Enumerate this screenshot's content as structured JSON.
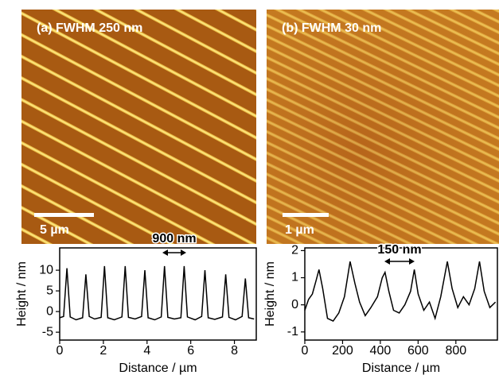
{
  "panels": [
    {
      "label": "(a) FWHM 250 nm",
      "scale_bar": "5 µm"
    },
    {
      "label": "(b) FWHM 30 nm",
      "scale_bar": "1 µm"
    }
  ],
  "chart_data": [
    {
      "type": "line",
      "x_label": "Distance / µm",
      "y_label": "Height / nm",
      "annotation": "900 nm",
      "x": [
        0,
        0.18,
        0.33,
        0.48,
        0.75,
        1.05,
        1.2,
        1.35,
        1.6,
        1.9,
        2.05,
        2.2,
        2.5,
        2.85,
        3.0,
        3.15,
        3.45,
        3.75,
        3.9,
        4.05,
        4.35,
        4.65,
        4.8,
        4.95,
        5.25,
        5.55,
        5.7,
        5.85,
        6.2,
        6.5,
        6.65,
        6.8,
        7.1,
        7.45,
        7.6,
        7.75,
        8.05,
        8.35,
        8.5,
        8.65,
        8.9
      ],
      "series": [
        {
          "color": "#000000",
          "values": [
            -1.5,
            -1.2,
            10.5,
            -1.3,
            -2,
            -1.5,
            9,
            -1.2,
            -1.8,
            -1.4,
            11,
            -1.5,
            -2,
            -1.3,
            11,
            -1.4,
            -1.8,
            -1.2,
            10,
            -1.5,
            -2,
            -1.3,
            11,
            -1.4,
            -1.8,
            -1.5,
            11,
            -1.3,
            -2,
            -1.2,
            10,
            -1.5,
            -1.9,
            -1.3,
            9,
            -1.4,
            -2,
            -1.2,
            8,
            -1.5,
            -1.8
          ]
        }
      ],
      "xlim": [
        0,
        9
      ],
      "ylim": [
        -6.9,
        15.4
      ],
      "xticks": [
        0,
        2,
        4,
        6,
        8
      ],
      "yticks": [
        -5,
        0,
        5,
        10
      ]
    },
    {
      "type": "line",
      "x_label": "Distance / µm",
      "y_label": "Height / nm",
      "annotation": "150 nm",
      "x": [
        0,
        20,
        40,
        60,
        75,
        95,
        120,
        150,
        180,
        210,
        240,
        265,
        290,
        320,
        350,
        385,
        410,
        425,
        445,
        470,
        500,
        530,
        560,
        580,
        600,
        630,
        660,
        690,
        720,
        755,
        780,
        810,
        840,
        870,
        900,
        925,
        950,
        980,
        1010
      ],
      "series": [
        {
          "color": "#000000",
          "values": [
            -0.2,
            0.2,
            0.4,
            0.9,
            1.3,
            0.6,
            -0.5,
            -0.6,
            -0.3,
            0.3,
            1.6,
            0.8,
            0.1,
            -0.4,
            -0.1,
            0.3,
            1.0,
            1.2,
            0.5,
            -0.2,
            -0.3,
            0.0,
            0.5,
            1.3,
            0.4,
            -0.2,
            0.1,
            -0.5,
            0.3,
            1.6,
            0.6,
            -0.1,
            0.3,
            0.0,
            0.6,
            1.6,
            0.5,
            -0.1,
            0.1
          ]
        }
      ],
      "xlim": [
        0,
        1020
      ],
      "ylim": [
        -1.3,
        2.1
      ],
      "xticks": [
        0,
        200,
        400,
        600,
        800
      ],
      "yticks": [
        -1,
        0,
        1,
        2
      ]
    }
  ]
}
